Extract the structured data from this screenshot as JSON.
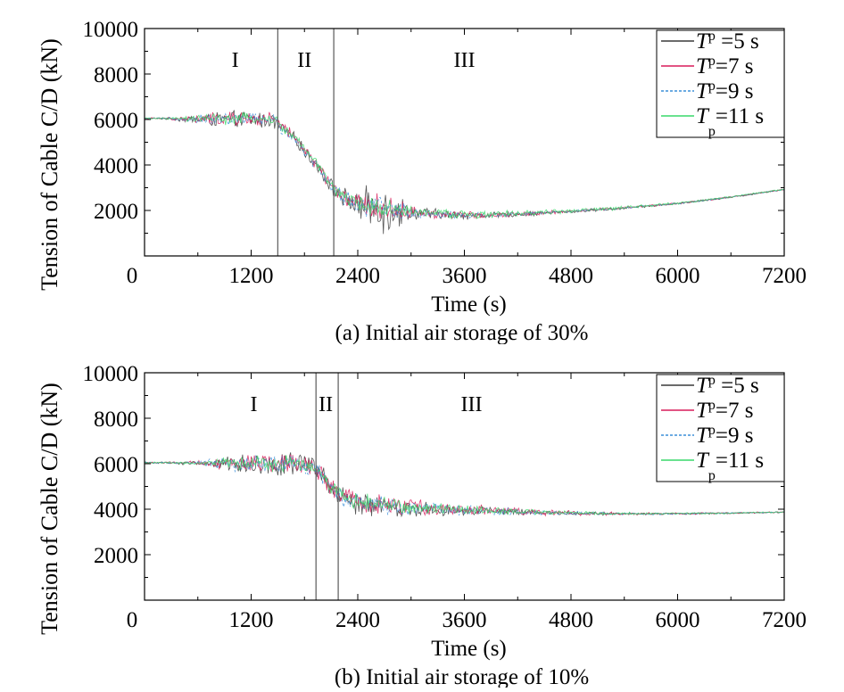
{
  "chart_data": [
    {
      "type": "line",
      "caption": "(a) Initial air storage of 30%",
      "xlabel": "Time (s)",
      "ylabel": "Tension of Cable C/D (kN)",
      "xlim": [
        0,
        7200
      ],
      "ylim": [
        0,
        10000
      ],
      "xticks": [
        "0",
        "1200",
        "2400",
        "3600",
        "4800",
        "6000",
        "7200"
      ],
      "yticks": [
        "2000",
        "4000",
        "6000",
        "8000",
        "10000"
      ],
      "grid": false,
      "legend_position": "top-right",
      "stage_lines": [
        1500,
        2130
      ],
      "stages": [
        {
          "label": "I",
          "x": 1020
        },
        {
          "label": "II",
          "x": 1800
        },
        {
          "label": "III",
          "x": 3600
        }
      ],
      "x": [
        0,
        300,
        600,
        900,
        1200,
        1450,
        1700,
        1950,
        2150,
        2400,
        2700,
        3000,
        3400,
        3800,
        4200,
        4800,
        5400,
        6000,
        6600,
        7200
      ],
      "series": [
        {
          "legend_main": "T",
          "legend_sub": "p",
          "legend_rest": " =5 s",
          "color": "#3a3a3a",
          "dash": "",
          "values": [
            6050,
            6040,
            6000,
            6000,
            6000,
            5950,
            5100,
            3900,
            2800,
            2200,
            2150,
            1900,
            1800,
            1780,
            1830,
            1950,
            2100,
            2300,
            2580,
            2920
          ],
          "amps": [
            40,
            60,
            280,
            420,
            450,
            420,
            300,
            340,
            420,
            650,
            1500,
            380,
            260,
            180,
            130,
            90,
            70,
            50,
            40,
            30
          ]
        },
        {
          "legend_main": "T",
          "legend_sub": "p",
          "legend_rest": "=7 s",
          "color": "#d81b5a",
          "dash": "",
          "values": [
            6050,
            6040,
            6020,
            6020,
            6030,
            5980,
            5150,
            3950,
            2850,
            2250,
            2100,
            1920,
            1820,
            1790,
            1840,
            1960,
            2110,
            2310,
            2590,
            2920
          ],
          "amps": [
            40,
            60,
            250,
            380,
            400,
            380,
            280,
            320,
            380,
            560,
            700,
            320,
            230,
            160,
            120,
            80,
            60,
            45,
            35,
            30
          ]
        },
        {
          "legend_main": "T",
          "legend_sub": "p",
          "legend_rest": "=9 s",
          "color": "#3b8fd9",
          "dash": "3,2",
          "values": [
            6050,
            6040,
            6020,
            6010,
            6020,
            5970,
            5120,
            3920,
            2820,
            2220,
            2100,
            1910,
            1810,
            1790,
            1840,
            1960,
            2110,
            2310,
            2590,
            2920
          ],
          "amps": [
            35,
            50,
            230,
            350,
            370,
            350,
            260,
            300,
            360,
            520,
            650,
            300,
            220,
            150,
            110,
            80,
            60,
            45,
            35,
            30
          ]
        },
        {
          "legend_main": "T",
          "legend_sub": "p",
          "legend_rest": "=11 s",
          "color": "#39d86a",
          "dash": "",
          "values": [
            6050,
            6040,
            6030,
            6020,
            6030,
            5990,
            5180,
            3980,
            2880,
            2280,
            2100,
            1950,
            1850,
            1820,
            1860,
            1980,
            2120,
            2320,
            2600,
            2930
          ],
          "amps": [
            35,
            50,
            200,
            300,
            320,
            300,
            240,
            280,
            320,
            450,
            500,
            300,
            250,
            200,
            150,
            120,
            90,
            60,
            40,
            30
          ]
        }
      ]
    },
    {
      "type": "line",
      "caption": "(b) Initial air storage of 10%",
      "xlabel": "Time (s)",
      "ylabel": "Tension of Cable C/D (kN)",
      "xlim": [
        0,
        7200
      ],
      "ylim": [
        0,
        10000
      ],
      "xticks": [
        "0",
        "1200",
        "2400",
        "3600",
        "4800",
        "6000",
        "7200"
      ],
      "yticks": [
        "2000",
        "4000",
        "6000",
        "8000",
        "10000"
      ],
      "grid": false,
      "legend_position": "top-right",
      "stage_lines": [
        1930,
        2180
      ],
      "stages": [
        {
          "label": "I",
          "x": 1230
        },
        {
          "label": "II",
          "x": 2040
        },
        {
          "label": "III",
          "x": 3680
        }
      ],
      "x": [
        0,
        300,
        600,
        900,
        1200,
        1500,
        1800,
        1950,
        2100,
        2250,
        2400,
        2700,
        3000,
        3400,
        3800,
        4200,
        4800,
        5400,
        6000,
        6600,
        7200
      ],
      "series": [
        {
          "legend_main": "T",
          "legend_sub": "p",
          "legend_rest": " =5 s",
          "color": "#3a3a3a",
          "dash": "",
          "values": [
            6050,
            6040,
            6020,
            6000,
            5980,
            6000,
            5950,
            5700,
            4900,
            4400,
            4200,
            4050,
            4020,
            3980,
            3920,
            3870,
            3820,
            3800,
            3800,
            3830,
            3870
          ],
          "amps": [
            40,
            60,
            120,
            450,
            550,
            600,
            550,
            500,
            550,
            600,
            700,
            650,
            450,
            300,
            200,
            150,
            100,
            70,
            50,
            40,
            30
          ]
        },
        {
          "legend_main": "T",
          "legend_sub": "p",
          "legend_rest": "=7 s",
          "color": "#d81b5a",
          "dash": "",
          "values": [
            6050,
            6040,
            6030,
            6020,
            6000,
            6020,
            5970,
            5720,
            4950,
            4500,
            4350,
            4200,
            4100,
            4020,
            3950,
            3890,
            3830,
            3800,
            3800,
            3830,
            3870
          ],
          "amps": [
            40,
            60,
            110,
            400,
            480,
            520,
            480,
            450,
            500,
            520,
            560,
            550,
            500,
            400,
            280,
            200,
            120,
            80,
            55,
            40,
            30
          ]
        },
        {
          "legend_main": "T",
          "legend_sub": "p",
          "legend_rest": "=9 s",
          "color": "#3b8fd9",
          "dash": "3,2",
          "values": [
            6050,
            6040,
            6030,
            6010,
            5990,
            6010,
            5960,
            5710,
            4930,
            4450,
            4300,
            4150,
            4070,
            4000,
            3940,
            3880,
            3825,
            3800,
            3800,
            3830,
            3870
          ],
          "amps": [
            35,
            50,
            100,
            360,
            440,
            480,
            440,
            420,
            460,
            480,
            520,
            500,
            420,
            320,
            230,
            170,
            100,
            70,
            50,
            40,
            30
          ]
        },
        {
          "legend_main": "T",
          "legend_sub": "p",
          "legend_rest": "=11 s",
          "color": "#39d86a",
          "dash": "",
          "values": [
            6050,
            6040,
            6030,
            6020,
            6000,
            6020,
            5980,
            5730,
            4960,
            4480,
            4320,
            4180,
            4100,
            4020,
            3960,
            3900,
            3840,
            3810,
            3805,
            3830,
            3870
          ],
          "amps": [
            35,
            50,
            90,
            320,
            380,
            420,
            380,
            360,
            400,
            420,
            460,
            440,
            380,
            290,
            210,
            150,
            90,
            60,
            45,
            35,
            30
          ]
        }
      ]
    }
  ]
}
